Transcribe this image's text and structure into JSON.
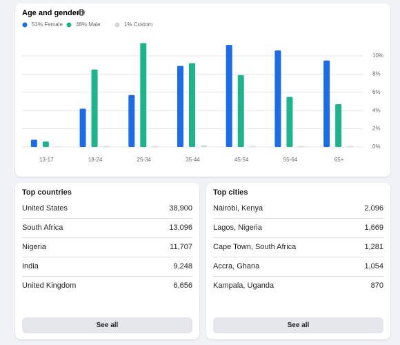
{
  "chart_data": {
    "type": "bar",
    "title": "Age and gender",
    "categories": [
      "13-17",
      "18-24",
      "25-34",
      "35-44",
      "45-54",
      "55-64",
      "65+"
    ],
    "series": [
      {
        "name": "51% Female",
        "color": "#1b6ce8",
        "values": [
          0.8,
          4.2,
          5.7,
          8.9,
          11.2,
          10.6,
          9.5
        ]
      },
      {
        "name": "48% Male",
        "color": "#1db48c",
        "values": [
          0.6,
          8.5,
          11.4,
          9.2,
          7.9,
          5.5,
          4.7
        ]
      },
      {
        "name": "1% Custom",
        "color": "#d3d6db",
        "values": [
          0.05,
          0.1,
          0.1,
          0.2,
          0.1,
          0.1,
          0.1
        ]
      }
    ],
    "ylim": [
      0,
      12
    ],
    "yticks": [
      {
        "value": 0,
        "label": "0%"
      },
      {
        "value": 2,
        "label": "2%"
      },
      {
        "value": 4,
        "label": "4%"
      },
      {
        "value": 6,
        "label": "6%"
      },
      {
        "value": 8,
        "label": "8%"
      },
      {
        "value": 10,
        "label": "10%"
      }
    ],
    "grid": true
  },
  "top_countries": {
    "title": "Top countries",
    "rows": [
      [
        "United States",
        "38,900"
      ],
      [
        "South Africa",
        "13,096"
      ],
      [
        "Nigeria",
        "11,707"
      ],
      [
        "India",
        "9,248"
      ],
      [
        "United Kingdom",
        "6,656"
      ]
    ],
    "button": "See all"
  },
  "top_cities": {
    "title": "Top cities",
    "rows": [
      [
        "Nairobi, Kenya",
        "2,096"
      ],
      [
        "Lagos, Nigeria",
        "1,669"
      ],
      [
        "Cape Town, South Africa",
        "1,281"
      ],
      [
        "Accra, Ghana",
        "1,054"
      ],
      [
        "Kampala, Uganda",
        "870"
      ]
    ],
    "button": "See all"
  }
}
